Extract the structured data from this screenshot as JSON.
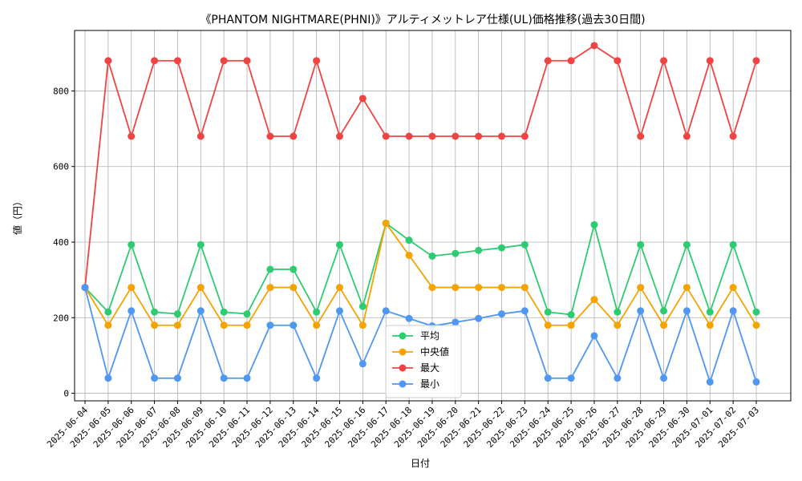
{
  "chart_data": {
    "type": "line",
    "title": "《PHANTOM NIGHTMARE(PHNI)》アルティメットレア仕様(UL)価格推移(過去30日間)",
    "xlabel": "日付",
    "ylabel": "値（円）",
    "ylim": [
      -20,
      960
    ],
    "yticks": [
      0,
      200,
      400,
      600,
      800
    ],
    "grid": true,
    "legend_position": "bottom-center",
    "categories": [
      "2025-06-04",
      "2025-06-05",
      "2025-06-06",
      "2025-06-07",
      "2025-06-08",
      "2025-06-09",
      "2025-06-10",
      "2025-06-11",
      "2025-06-12",
      "2025-06-13",
      "2025-06-14",
      "2025-06-15",
      "2025-06-16",
      "2025-06-17",
      "2025-06-18",
      "2025-06-19",
      "2025-06-20",
      "2025-06-21",
      "2025-06-22",
      "2025-06-23",
      "2025-06-24",
      "2025-06-25",
      "2025-06-26",
      "2025-06-27",
      "2025-06-28",
      "2025-06-29",
      "2025-06-30",
      "2025-07-01",
      "2025-07-02",
      "2025-07-03"
    ],
    "series": [
      {
        "name": "平均",
        "color": "#2ecc71",
        "values": [
          280,
          215,
          393,
          215,
          210,
          393,
          215,
          210,
          328,
          328,
          215,
          393,
          230,
          450,
          405,
          363,
          370,
          378,
          385,
          393,
          215,
          208,
          446,
          215,
          393,
          218,
          393,
          215,
          393,
          215
        ]
      },
      {
        "name": "中央値",
        "color": "#f5a300",
        "values": [
          280,
          180,
          280,
          180,
          180,
          280,
          180,
          180,
          280,
          280,
          180,
          280,
          180,
          450,
          365,
          280,
          280,
          280,
          280,
          280,
          180,
          180,
          248,
          180,
          280,
          180,
          280,
          180,
          280,
          180
        ]
      },
      {
        "name": "最大",
        "color": "#ef4444",
        "values": [
          280,
          880,
          680,
          880,
          880,
          680,
          880,
          880,
          680,
          680,
          880,
          680,
          780,
          680,
          680,
          680,
          680,
          680,
          680,
          680,
          880,
          880,
          920,
          880,
          680,
          880,
          680,
          880,
          680,
          880
        ]
      },
      {
        "name": "最小",
        "color": "#4f97f0",
        "values": [
          280,
          40,
          218,
          40,
          40,
          218,
          40,
          40,
          180,
          180,
          40,
          218,
          78,
          218,
          198,
          178,
          188,
          198,
          210,
          218,
          40,
          40,
          152,
          40,
          218,
          40,
          218,
          30,
          218,
          30
        ]
      }
    ]
  }
}
